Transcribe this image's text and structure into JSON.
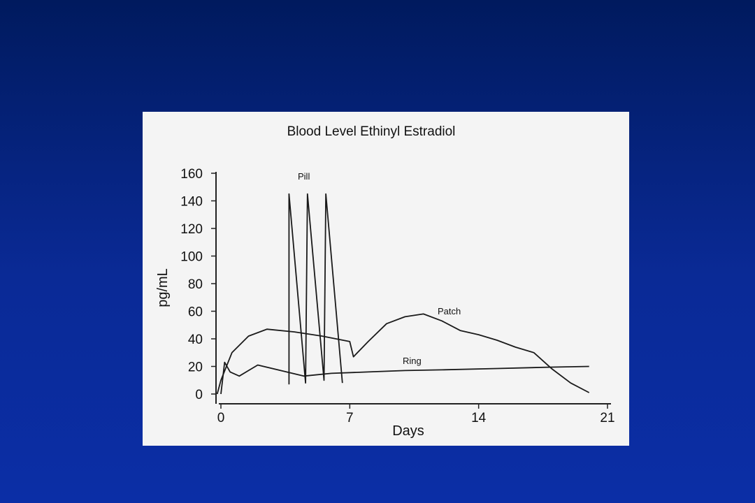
{
  "slide": {
    "background_top": "#001a5e",
    "background_bottom": "#0b2ea6"
  },
  "chart_data": {
    "type": "line",
    "title": "Blood Level Ethinyl Estradiol",
    "xlabel": "Days",
    "ylabel": "pg/mL",
    "xlim": [
      0,
      21
    ],
    "ylim": [
      0,
      160
    ],
    "x_ticks": [
      0,
      7,
      14,
      21
    ],
    "y_ticks": [
      0,
      20,
      40,
      60,
      80,
      100,
      120,
      140,
      160
    ],
    "grid": false,
    "legend": "none",
    "series": [
      {
        "name": "Pill",
        "points": [
          [
            3.7,
            7
          ],
          [
            3.7,
            145
          ],
          [
            4.6,
            8
          ],
          [
            4.7,
            145
          ],
          [
            5.6,
            10
          ],
          [
            5.7,
            145
          ],
          [
            6.6,
            8
          ]
        ]
      },
      {
        "name": "Patch",
        "points": [
          [
            -0.2,
            0
          ],
          [
            0,
            10
          ],
          [
            0.6,
            30
          ],
          [
            1.5,
            42
          ],
          [
            2.5,
            47
          ],
          [
            4,
            45
          ],
          [
            5.5,
            42
          ],
          [
            7,
            38
          ],
          [
            7.2,
            27
          ],
          [
            8,
            38
          ],
          [
            9,
            51
          ],
          [
            10,
            56
          ],
          [
            11,
            58
          ],
          [
            12,
            53
          ],
          [
            13,
            46
          ],
          [
            14,
            43
          ],
          [
            15,
            39
          ],
          [
            16,
            34
          ],
          [
            17,
            30
          ],
          [
            18,
            18
          ],
          [
            19,
            8
          ],
          [
            20,
            1
          ]
        ]
      },
      {
        "name": "Ring",
        "points": [
          [
            0,
            0
          ],
          [
            0.2,
            23
          ],
          [
            0.5,
            16
          ],
          [
            1,
            13
          ],
          [
            1.5,
            17
          ],
          [
            2,
            21
          ],
          [
            4.5,
            13
          ],
          [
            6,
            15
          ],
          [
            8,
            16
          ],
          [
            10,
            17
          ],
          [
            12,
            17.5
          ],
          [
            15,
            18.5
          ],
          [
            18,
            19.5
          ],
          [
            20,
            20
          ]
        ]
      }
    ]
  }
}
